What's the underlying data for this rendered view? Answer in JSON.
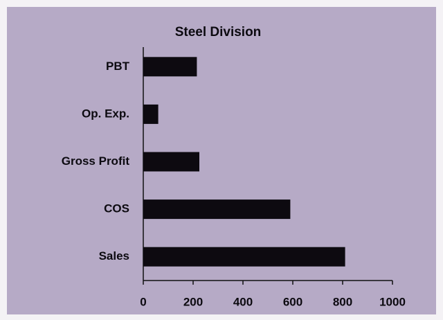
{
  "chart_data": {
    "type": "barh",
    "title": "Steel Division",
    "categories": [
      "PBT",
      "Op. Exp.",
      "Gross Profit",
      "COS",
      "Sales"
    ],
    "values": [
      215,
      60,
      225,
      590,
      810
    ],
    "color": "#0d0a10",
    "xlim": [
      0,
      1000
    ],
    "xticks": [
      0,
      200,
      400,
      600,
      800,
      1000
    ],
    "grid": false
  }
}
